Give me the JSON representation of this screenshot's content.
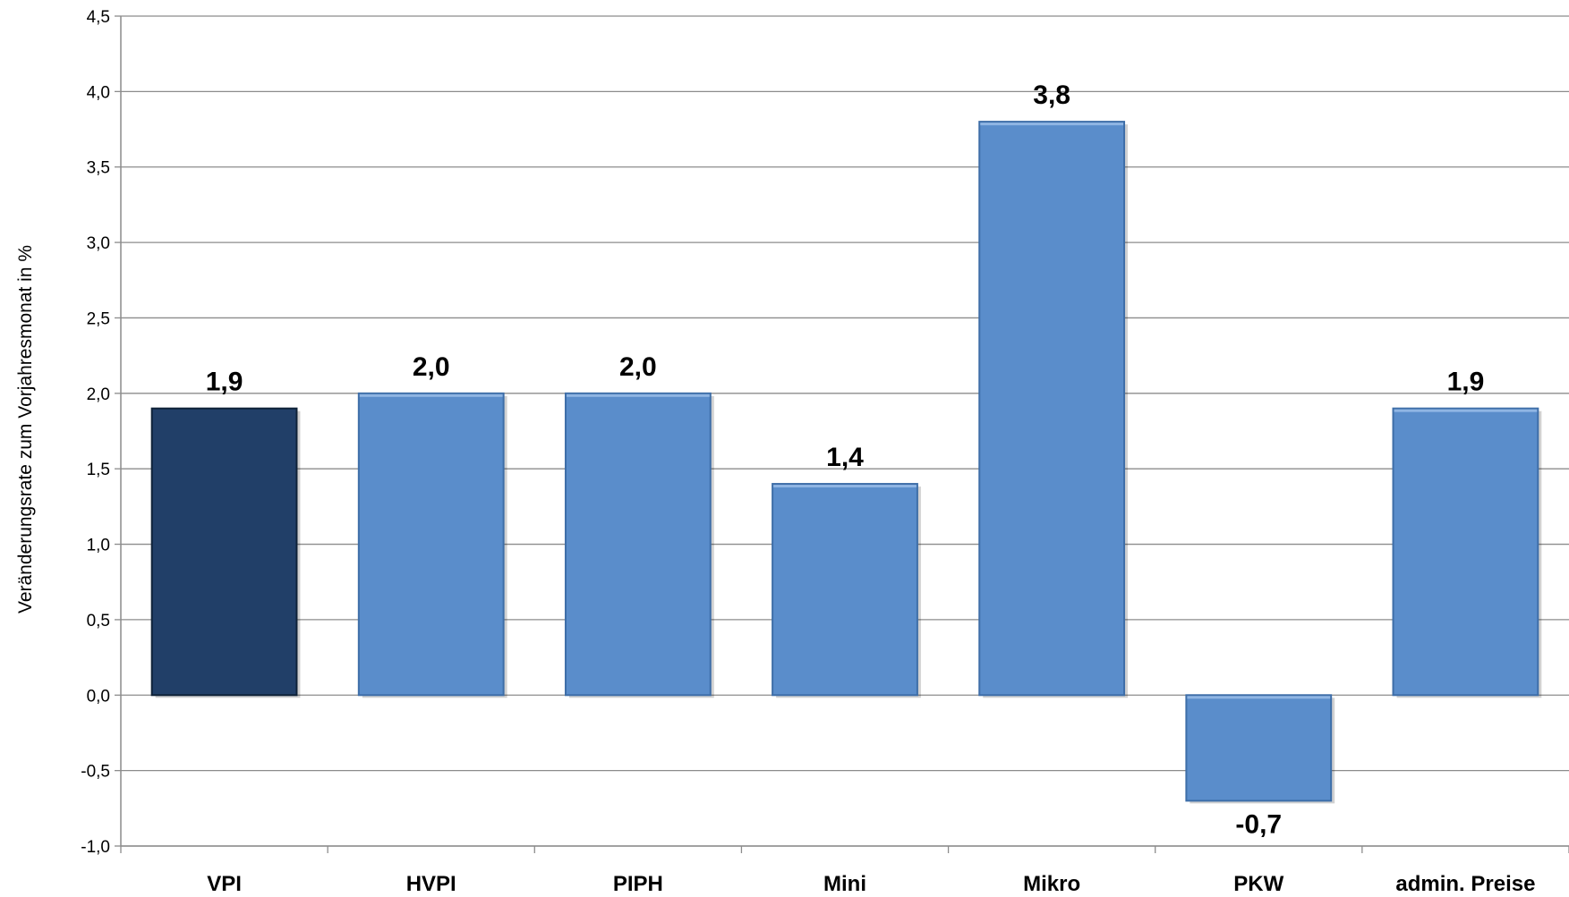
{
  "chart_data": {
    "type": "bar",
    "title": "",
    "xlabel": "",
    "ylabel": "Veränderungsrate zum Vorjahresmonat in %",
    "categories": [
      "VPI",
      "HVPI",
      "PIPH",
      "Mini",
      "Mikro",
      "PKW",
      "admin. Preise"
    ],
    "values": [
      1.9,
      2.0,
      2.0,
      1.4,
      3.8,
      -0.7,
      1.9
    ],
    "value_labels": [
      "1,9",
      "2,0",
      "2,0",
      "1,4",
      "3,8",
      "-0,7",
      "1,9"
    ],
    "ylim": [
      -1.0,
      4.5
    ],
    "yticks": [
      -1.0,
      -0.5,
      0.0,
      0.5,
      1.0,
      1.5,
      2.0,
      2.5,
      3.0,
      3.5,
      4.0,
      4.5
    ],
    "ytick_labels": [
      "-1,0",
      "-0,5",
      "0,0",
      "0,5",
      "1,0",
      "1,5",
      "2,0",
      "2,5",
      "3,0",
      "3,5",
      "4,0",
      "4,5"
    ],
    "grid": true,
    "legend": "none",
    "colors": {
      "highlight": "#213f68",
      "highlight_edge": "#0f2238",
      "bar": "#5a8dcb",
      "bar_edge": "#3e6ea8",
      "bar_top": "#8fb5e3",
      "grid": "#8c8c8c",
      "axis": "#8c8c8c"
    },
    "bar_colors": [
      "highlight",
      "bar",
      "bar",
      "bar",
      "bar",
      "bar",
      "bar"
    ]
  }
}
